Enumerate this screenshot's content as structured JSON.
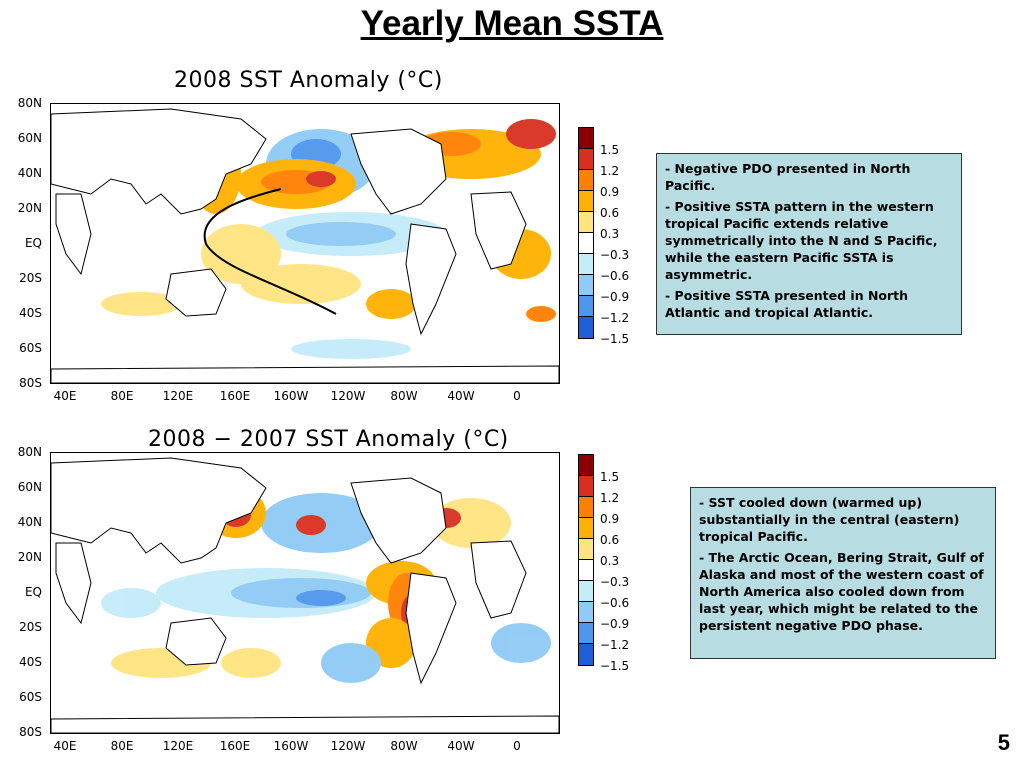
{
  "slide": {
    "title": "Yearly Mean SSTA",
    "page_number": "5"
  },
  "map_top": {
    "title": "2008 SST Anomaly (°C)"
  },
  "map_bottom": {
    "title": "2008 − 2007 SST Anomaly (°C)"
  },
  "lat_labels": [
    "80N",
    "60N",
    "40N",
    "20N",
    "EQ",
    "20S",
    "40S",
    "60S",
    "80S"
  ],
  "lon_labels": [
    "40E",
    "80E",
    "120E",
    "160E",
    "160W",
    "120W",
    "80W",
    "40W",
    "0"
  ],
  "colorbar": {
    "labels": [
      "1.5",
      "1.2",
      "0.9",
      "0.6",
      "0.3",
      "−0.3",
      "−0.6",
      "−0.9",
      "−1.2",
      "−1.5"
    ],
    "colors": [
      "#8b0000",
      "#d7301f",
      "#ff7f00",
      "#ffb000",
      "#ffe480",
      "#ffffff",
      "#c4ecfa",
      "#8ecbf5",
      "#4f97ec",
      "#1f5fd6"
    ]
  },
  "notes_top": [
    "- Negative PDO presented in North Pacific.",
    "- Positive SSTA pattern in the western tropical Pacific extends relative symmetrically into the N and S Pacific, while the eastern Pacific SSTA is asymmetric.",
    "- Positive SSTA presented in North Atlantic and tropical Atlantic."
  ],
  "notes_bottom": [
    "- SST cooled down (warmed up) substantially in the central (eastern) tropical Pacific.",
    "- The Arctic Ocean, Bering Strait, Gulf of Alaska and most of the western coast of North America also cooled down from last year, which might be related to the persistent negative PDO phase."
  ]
}
